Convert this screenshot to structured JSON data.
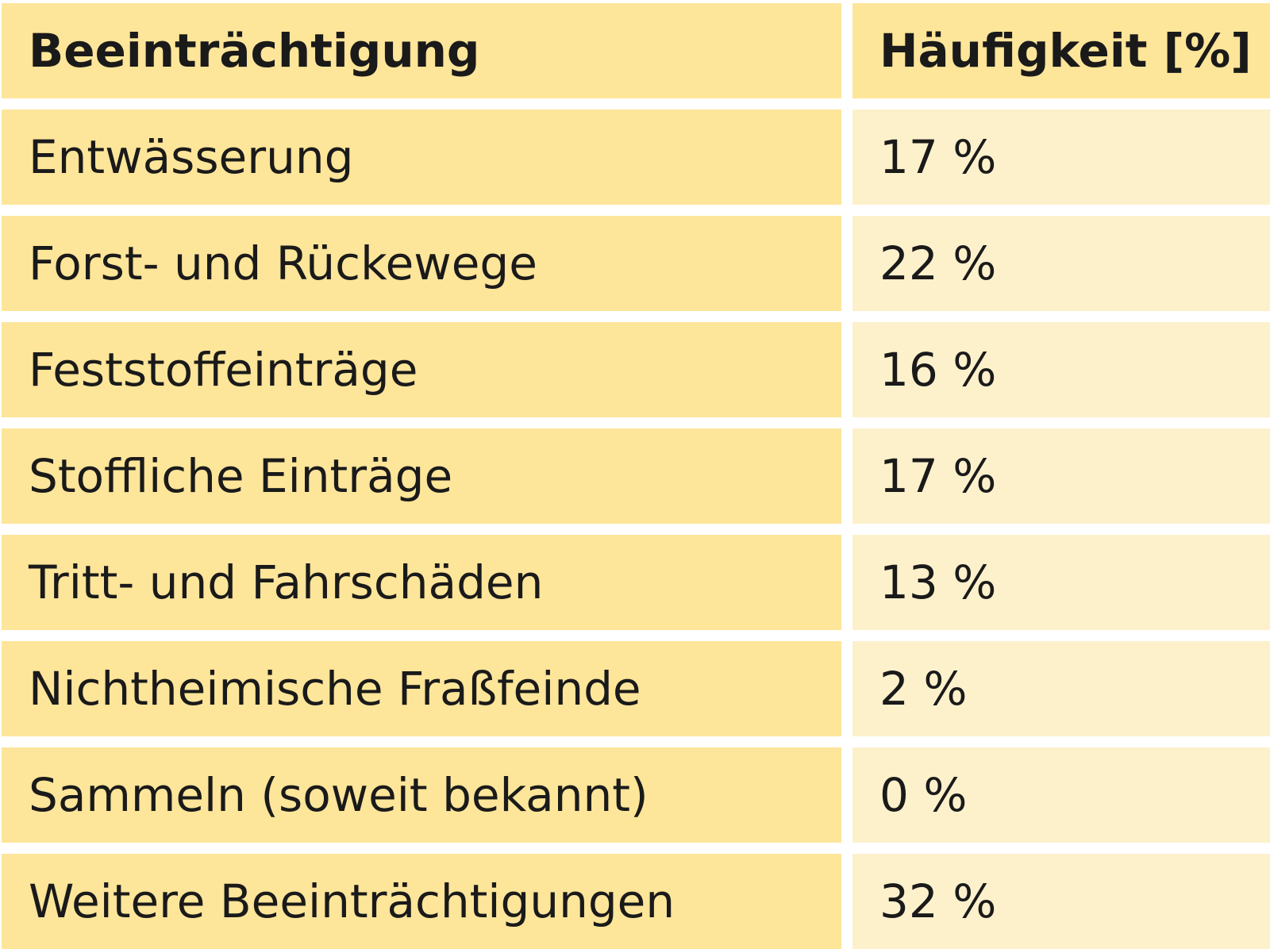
{
  "table": {
    "header": {
      "label": "Beeinträchtigung",
      "value": "Häufigkeit [%]"
    },
    "rows": [
      {
        "label": "Entwässerung",
        "value": "17 %"
      },
      {
        "label": "Forst- und Rückewege",
        "value": "22 %"
      },
      {
        "label": "Feststoffeinträge",
        "value": "16 %"
      },
      {
        "label": "Stoffliche Einträge",
        "value": "17 %"
      },
      {
        "label": "Tritt- und Fahrschäden",
        "value": "13 %"
      },
      {
        "label": "Nichtheimische Fraßfeinde",
        "value": "2 %"
      },
      {
        "label": "Sammeln (soweit bekannt)",
        "value": "0 %"
      },
      {
        "label": "Weitere Beeinträchtigungen",
        "value": "32 %"
      }
    ],
    "colors": {
      "header_bg": "#fde59a",
      "label_bg": "#fde59a",
      "value_bg": "#fdf1cc",
      "text": "#1a1a1a"
    }
  }
}
